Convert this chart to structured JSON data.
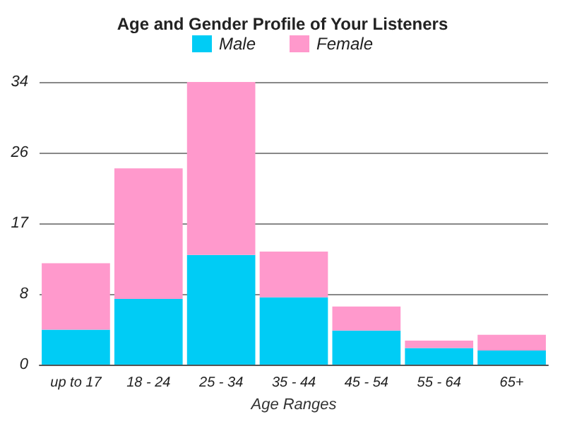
{
  "chart_data": {
    "type": "bar",
    "title": "Age and Gender Profile of Your Listeners",
    "xlabel": "Age Ranges",
    "categories": [
      "up to 17",
      "18 - 24",
      "25 - 34",
      "35 - 44",
      "45 - 54",
      "55 - 64",
      "65+"
    ],
    "series": [
      {
        "name": "Male",
        "color": "#00ccf5",
        "values": [
          4.2,
          7.9,
          13.2,
          8.1,
          4.1,
          2,
          1.7
        ]
      },
      {
        "name": "Female",
        "color": "#ff99cc",
        "values": [
          8,
          15.7,
          20.8,
          5.5,
          2.9,
          0.9,
          1.9
        ]
      }
    ],
    "stacked": true,
    "ylim": [
      0,
      34
    ],
    "yticks": [
      0,
      {
        "value": 8.5,
        "label": "8"
      },
      17,
      {
        "value": 25.5,
        "label": "26"
      },
      34
    ],
    "grid": "y",
    "legend": "top"
  }
}
